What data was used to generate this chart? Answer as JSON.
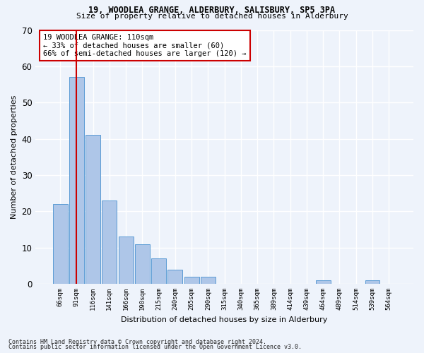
{
  "title1": "19, WOODLEA GRANGE, ALDERBURY, SALISBURY, SP5 3PA",
  "title2": "Size of property relative to detached houses in Alderbury",
  "xlabel": "Distribution of detached houses by size in Alderbury",
  "ylabel": "Number of detached properties",
  "footnote1": "Contains HM Land Registry data © Crown copyright and database right 2024.",
  "footnote2": "Contains public sector information licensed under the Open Government Licence v3.0.",
  "annotation_line1": "19 WOODLEA GRANGE: 110sqm",
  "annotation_line2": "← 33% of detached houses are smaller (60)",
  "annotation_line3": "66% of semi-detached houses are larger (120) →",
  "bar_labels": [
    "66sqm",
    "91sqm",
    "116sqm",
    "141sqm",
    "166sqm",
    "190sqm",
    "215sqm",
    "240sqm",
    "265sqm",
    "290sqm",
    "315sqm",
    "340sqm",
    "365sqm",
    "389sqm",
    "414sqm",
    "439sqm",
    "464sqm",
    "489sqm",
    "514sqm",
    "539sqm",
    "564sqm"
  ],
  "bar_values": [
    22,
    57,
    41,
    23,
    13,
    11,
    7,
    4,
    2,
    2,
    0,
    0,
    0,
    0,
    0,
    0,
    1,
    0,
    0,
    1,
    0
  ],
  "bar_color": "#aec6e8",
  "bar_edge_color": "#5b9bd5",
  "vline_x": 1.0,
  "vline_color": "#cc0000",
  "bg_color": "#eef3fb",
  "plot_bg_color": "#eef3fb",
  "grid_color": "#ffffff",
  "ylim": [
    0,
    70
  ],
  "yticks": [
    0,
    10,
    20,
    30,
    40,
    50,
    60,
    70
  ],
  "fig_width": 6.0,
  "fig_height": 5.0,
  "title1_fontsize": 8.5,
  "title2_fontsize": 8.0,
  "ylabel_fontsize": 8.0,
  "xlabel_fontsize": 8.0,
  "ytick_fontsize": 8.5,
  "xtick_fontsize": 6.5,
  "annot_fontsize": 7.5,
  "footnote_fontsize": 6.0
}
